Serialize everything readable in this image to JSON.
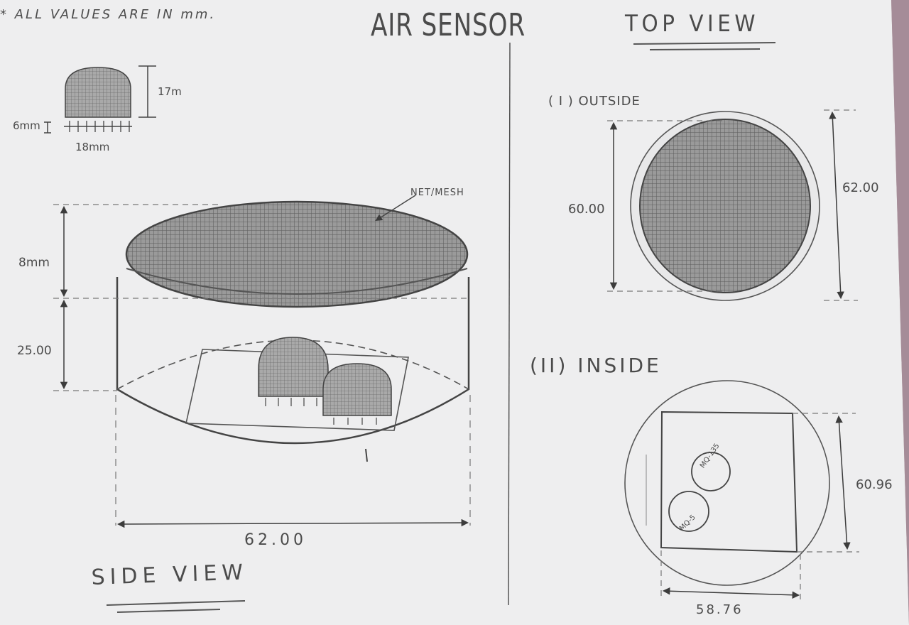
{
  "note": "* ALL VALUES ARE IN mm.",
  "title": "AIR SENSOR",
  "top_view_heading": "TOP VIEW",
  "side_view_heading": "SIDE VIEW",
  "small_sensor": {
    "height": "17m",
    "leg_height": "6mm",
    "width": "18mm"
  },
  "side_view": {
    "mesh_label": "NET/MESH",
    "cap_height": "8mm",
    "body_height": "25.00",
    "width": "62.00"
  },
  "top_view_outside": {
    "caption": "( I ) OUTSIDE",
    "inner_diameter": "60.00",
    "outer_diameter": "62.00"
  },
  "top_view_inside": {
    "caption": "(II) INSIDE",
    "sensor_a": "MQ-135",
    "sensor_b": "MQ-5",
    "board_height": "60.96",
    "board_width": "58.76"
  },
  "colors": {
    "paper": "#eeeeef",
    "pencil": "#4a4a4a",
    "background_cloth": "#b9a6a4"
  }
}
